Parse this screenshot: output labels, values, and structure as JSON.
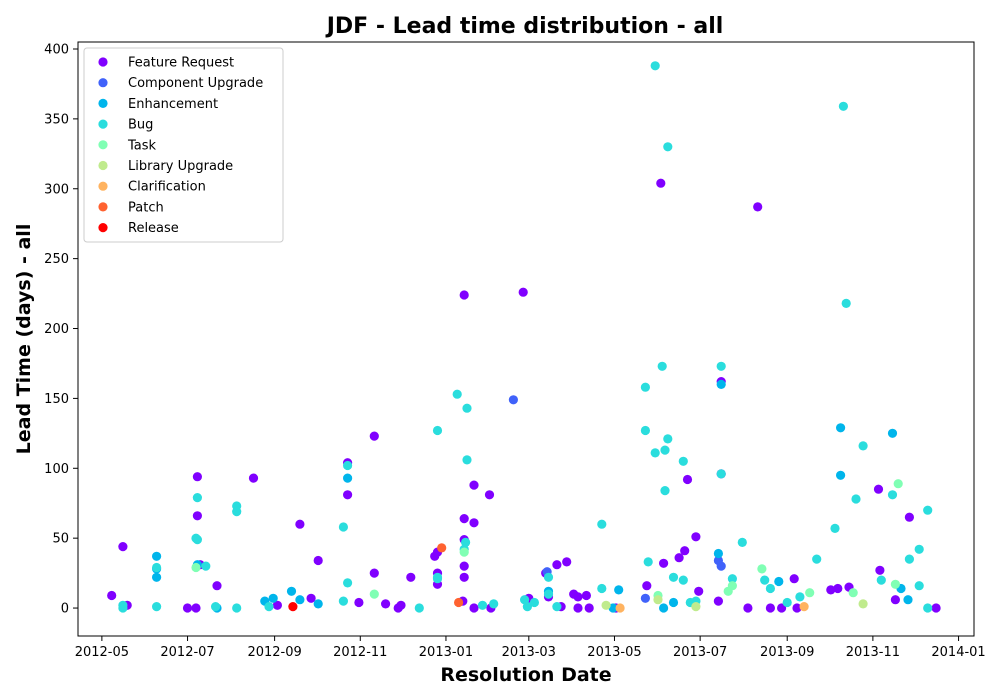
{
  "chart_data": {
    "type": "scatter",
    "title": "JDF - Lead time distribution - all",
    "xlabel": "Resolution Date",
    "ylabel": "Lead Time (days) - all",
    "xlim": [
      "2012-04-14",
      "2014-01-12"
    ],
    "ylim": [
      -20,
      405
    ],
    "x_ticks": [
      "2012-05",
      "2012-07",
      "2012-09",
      "2012-11",
      "2013-01",
      "2013-03",
      "2013-05",
      "2013-07",
      "2013-09",
      "2013-11",
      "2014-01"
    ],
    "y_ticks": [
      0,
      50,
      100,
      150,
      200,
      250,
      300,
      350,
      400
    ],
    "grid": false,
    "legend_position": "top-left",
    "series": [
      {
        "name": "Feature Request",
        "color": "#8000ff",
        "points": [
          [
            "2012-05-08",
            9
          ],
          [
            "2012-05-16",
            44
          ],
          [
            "2012-05-19",
            2
          ],
          [
            "2012-07-01",
            0
          ],
          [
            "2012-07-07",
            0
          ],
          [
            "2012-07-08",
            94
          ],
          [
            "2012-07-08",
            66
          ],
          [
            "2012-07-10",
            31
          ],
          [
            "2012-07-22",
            16
          ],
          [
            "2012-08-17",
            93
          ],
          [
            "2012-09-03",
            2
          ],
          [
            "2012-09-19",
            60
          ],
          [
            "2012-09-27",
            7
          ],
          [
            "2012-10-02",
            34
          ],
          [
            "2012-10-23",
            104
          ],
          [
            "2012-10-23",
            81
          ],
          [
            "2012-10-31",
            4
          ],
          [
            "2012-11-11",
            123
          ],
          [
            "2012-11-11",
            25
          ],
          [
            "2012-11-19",
            3
          ],
          [
            "2012-11-28",
            0
          ],
          [
            "2012-11-30",
            2
          ],
          [
            "2012-12-07",
            22
          ],
          [
            "2012-12-24",
            37
          ],
          [
            "2012-12-26",
            40
          ],
          [
            "2012-12-26",
            25
          ],
          [
            "2012-12-26",
            17
          ],
          [
            "2013-01-14",
            224
          ],
          [
            "2013-01-14",
            64
          ],
          [
            "2013-01-14",
            49
          ],
          [
            "2013-01-14",
            30
          ],
          [
            "2013-01-14",
            22
          ],
          [
            "2013-01-13",
            5
          ],
          [
            "2013-01-21",
            88
          ],
          [
            "2013-01-21",
            61
          ],
          [
            "2013-01-21",
            0
          ],
          [
            "2013-02-01",
            81
          ],
          [
            "2013-02-02",
            0
          ],
          [
            "2013-02-25",
            226
          ],
          [
            "2013-03-01",
            7
          ],
          [
            "2013-03-13",
            25
          ],
          [
            "2013-03-15",
            8
          ],
          [
            "2013-03-21",
            31
          ],
          [
            "2013-03-28",
            33
          ],
          [
            "2013-03-24",
            1
          ],
          [
            "2013-04-02",
            10
          ],
          [
            "2013-04-05",
            8
          ],
          [
            "2013-04-05",
            0
          ],
          [
            "2013-04-11",
            9
          ],
          [
            "2013-04-13",
            0
          ],
          [
            "2013-05-02",
            0
          ],
          [
            "2013-05-24",
            16
          ],
          [
            "2013-06-03",
            304
          ],
          [
            "2013-06-05",
            32
          ],
          [
            "2013-06-16",
            36
          ],
          [
            "2013-06-20",
            41
          ],
          [
            "2013-06-22",
            92
          ],
          [
            "2013-06-28",
            51
          ],
          [
            "2013-06-30",
            12
          ],
          [
            "2013-07-14",
            5
          ],
          [
            "2013-07-16",
            162
          ],
          [
            "2013-07-16",
            96
          ],
          [
            "2013-08-04",
            0
          ],
          [
            "2013-08-11",
            287
          ],
          [
            "2013-08-20",
            0
          ],
          [
            "2013-08-28",
            0
          ],
          [
            "2013-09-06",
            21
          ],
          [
            "2013-09-08",
            0
          ],
          [
            "2013-10-02",
            13
          ],
          [
            "2013-10-07",
            14
          ],
          [
            "2013-10-15",
            15
          ],
          [
            "2013-11-05",
            85
          ],
          [
            "2013-11-06",
            27
          ],
          [
            "2013-11-17",
            6
          ],
          [
            "2013-11-27",
            65
          ],
          [
            "2013-12-16",
            0
          ]
        ]
      },
      {
        "name": "Component  Upgrade",
        "color": "#4062fa",
        "points": [
          [
            "2013-02-18",
            149
          ],
          [
            "2013-03-14",
            26
          ],
          [
            "2013-05-23",
            7
          ],
          [
            "2013-07-14",
            34
          ],
          [
            "2013-07-16",
            30
          ]
        ]
      },
      {
        "name": "Enhancement",
        "color": "#00b5eb",
        "points": [
          [
            "2012-06-09",
            37
          ],
          [
            "2012-06-09",
            22
          ],
          [
            "2012-06-09",
            28
          ],
          [
            "2012-07-08",
            31
          ],
          [
            "2012-07-22",
            0
          ],
          [
            "2012-08-25",
            5
          ],
          [
            "2012-08-31",
            7
          ],
          [
            "2012-09-13",
            12
          ],
          [
            "2012-09-19",
            6
          ],
          [
            "2012-10-02",
            3
          ],
          [
            "2012-10-23",
            93
          ],
          [
            "2013-03-15",
            12
          ],
          [
            "2013-04-30",
            0
          ],
          [
            "2013-05-04",
            13
          ],
          [
            "2013-06-05",
            0
          ],
          [
            "2013-06-12",
            4
          ],
          [
            "2013-07-14",
            39
          ],
          [
            "2013-07-16",
            160
          ],
          [
            "2013-08-26",
            19
          ],
          [
            "2013-10-09",
            129
          ],
          [
            "2013-10-09",
            95
          ],
          [
            "2013-11-15",
            125
          ],
          [
            "2013-11-21",
            14
          ],
          [
            "2013-11-26",
            6
          ]
        ]
      },
      {
        "name": "Bug",
        "color": "#2adddd",
        "points": [
          [
            "2012-05-16",
            0
          ],
          [
            "2012-05-16",
            2
          ],
          [
            "2012-06-09",
            29
          ],
          [
            "2012-06-09",
            1
          ],
          [
            "2012-07-07",
            50
          ],
          [
            "2012-07-08",
            49
          ],
          [
            "2012-07-08",
            79
          ],
          [
            "2012-07-14",
            30
          ],
          [
            "2012-07-21",
            1
          ],
          [
            "2012-08-05",
            73
          ],
          [
            "2012-08-05",
            69
          ],
          [
            "2012-08-05",
            0
          ],
          [
            "2012-08-28",
            1
          ],
          [
            "2012-10-20",
            58
          ],
          [
            "2012-10-23",
            102
          ],
          [
            "2012-10-23",
            18
          ],
          [
            "2012-10-20",
            5
          ],
          [
            "2012-12-13",
            0
          ],
          [
            "2012-12-26",
            127
          ],
          [
            "2012-12-26",
            21
          ],
          [
            "2012-12-26",
            22
          ],
          [
            "2013-01-09",
            153
          ],
          [
            "2013-01-14",
            42
          ],
          [
            "2013-01-15",
            47
          ],
          [
            "2013-01-16",
            106
          ],
          [
            "2013-01-16",
            143
          ],
          [
            "2013-01-27",
            2
          ],
          [
            "2013-02-04",
            3
          ],
          [
            "2013-02-26",
            6
          ],
          [
            "2013-02-28",
            1
          ],
          [
            "2013-03-05",
            4
          ],
          [
            "2013-03-15",
            22
          ],
          [
            "2013-03-15",
            10
          ],
          [
            "2013-03-21",
            1
          ],
          [
            "2013-04-22",
            60
          ],
          [
            "2013-04-22",
            14
          ],
          [
            "2013-05-23",
            158
          ],
          [
            "2013-05-23",
            127
          ],
          [
            "2013-05-25",
            33
          ],
          [
            "2013-05-30",
            388
          ],
          [
            "2013-05-30",
            111
          ],
          [
            "2013-06-04",
            173
          ],
          [
            "2013-06-06",
            113
          ],
          [
            "2013-06-06",
            84
          ],
          [
            "2013-06-08",
            330
          ],
          [
            "2013-06-08",
            121
          ],
          [
            "2013-06-12",
            22
          ],
          [
            "2013-06-19",
            105
          ],
          [
            "2013-06-19",
            20
          ],
          [
            "2013-06-24",
            4
          ],
          [
            "2013-06-28",
            5
          ],
          [
            "2013-07-16",
            173
          ],
          [
            "2013-07-16",
            96
          ],
          [
            "2013-07-24",
            21
          ],
          [
            "2013-07-31",
            47
          ],
          [
            "2013-08-16",
            20
          ],
          [
            "2013-08-20",
            14
          ],
          [
            "2013-09-01",
            4
          ],
          [
            "2013-09-10",
            8
          ],
          [
            "2013-09-22",
            35
          ],
          [
            "2013-10-05",
            57
          ],
          [
            "2013-10-11",
            359
          ],
          [
            "2013-10-13",
            218
          ],
          [
            "2013-10-20",
            78
          ],
          [
            "2013-10-25",
            116
          ],
          [
            "2013-11-07",
            20
          ],
          [
            "2013-11-15",
            81
          ],
          [
            "2013-11-27",
            35
          ],
          [
            "2013-12-04",
            42
          ],
          [
            "2013-12-04",
            16
          ],
          [
            "2013-12-10",
            70
          ],
          [
            "2013-12-10",
            0
          ]
        ]
      },
      {
        "name": "Task",
        "color": "#80ffb4",
        "points": [
          [
            "2012-07-07",
            29
          ],
          [
            "2012-11-11",
            10
          ],
          [
            "2013-01-14",
            40
          ],
          [
            "2013-06-01",
            9
          ],
          [
            "2013-07-21",
            12
          ],
          [
            "2013-07-24",
            16
          ],
          [
            "2013-08-14",
            28
          ],
          [
            "2013-09-17",
            11
          ],
          [
            "2013-10-18",
            11
          ],
          [
            "2013-11-17",
            17
          ],
          [
            "2013-11-19",
            89
          ]
        ]
      },
      {
        "name": "Library Upgrade",
        "color": "#c0eb8d",
        "points": [
          [
            "2013-04-25",
            2
          ],
          [
            "2013-06-01",
            6
          ],
          [
            "2013-06-28",
            1
          ],
          [
            "2013-10-25",
            3
          ]
        ]
      },
      {
        "name": "Clarification",
        "color": "#ffb360",
        "points": [
          [
            "2013-05-05",
            0
          ],
          [
            "2013-09-13",
            1
          ]
        ]
      },
      {
        "name": "Patch",
        "color": "#ff6230",
        "points": [
          [
            "2012-12-29",
            43
          ],
          [
            "2013-01-10",
            4
          ]
        ]
      },
      {
        "name": "Release",
        "color": "#ff0000",
        "points": [
          [
            "2012-09-14",
            1
          ]
        ]
      }
    ]
  }
}
